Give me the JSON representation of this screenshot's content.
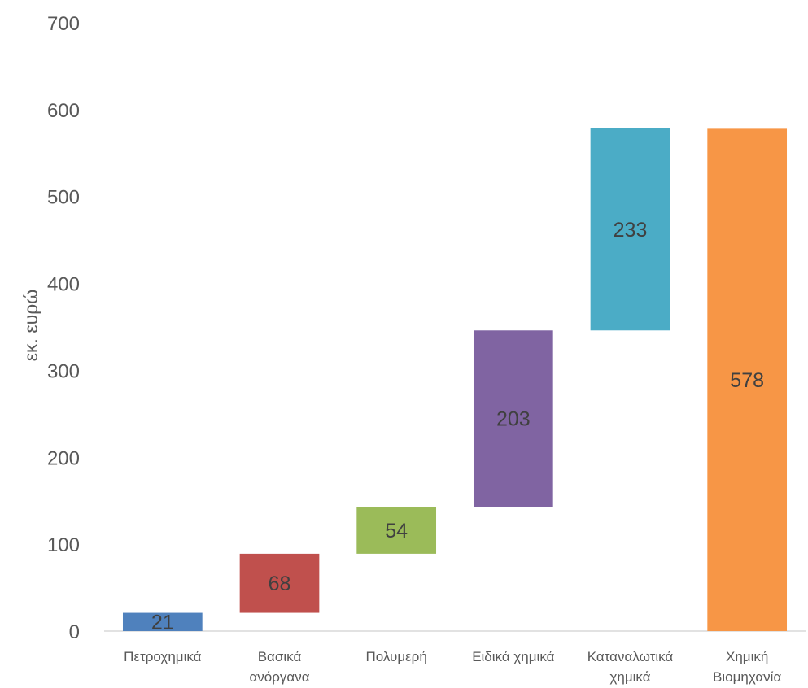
{
  "chart_data": {
    "type": "bar",
    "subtype": "waterfall",
    "title": "",
    "xlabel": "",
    "ylabel": "εκ. ευρώ",
    "ylim": [
      0,
      700
    ],
    "yticks": [
      "0",
      "100",
      "200",
      "300",
      "400",
      "500",
      "600",
      "700"
    ],
    "grid": false,
    "legend": "none",
    "categories": [
      [
        "Πετροχημικά"
      ],
      [
        "Βασικά",
        "ανόργανα"
      ],
      [
        "Πολυμερή"
      ],
      [
        "Ειδικά χημικά"
      ],
      [
        "Καταναλωτικά",
        "χημικά"
      ],
      [
        "Χημική",
        "Βιομηχανία"
      ]
    ],
    "values": [
      21,
      68,
      54,
      203,
      233,
      578
    ],
    "bases": [
      0,
      21,
      89,
      143,
      346,
      0
    ],
    "value_labels": [
      "21",
      "68",
      "54",
      "203",
      "233",
      "578"
    ],
    "colors": [
      "#4F81BD",
      "#C0504D",
      "#9BBB59",
      "#8064A2",
      "#4BACC6",
      "#F79646"
    ]
  }
}
